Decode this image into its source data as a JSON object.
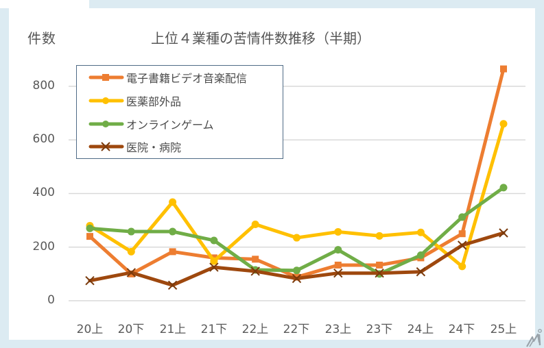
{
  "chart_data": {
    "type": "line",
    "title": "上位４業種の苦情件数推移（半期）",
    "ylabel": "件数",
    "xlabel": "",
    "categories": [
      "20上",
      "20下",
      "21上",
      "21下",
      "22上",
      "22下",
      "23上",
      "23下",
      "24上",
      "24下",
      "25上"
    ],
    "ylim": [
      0,
      800
    ],
    "yticks": [
      0,
      200,
      400,
      600,
      800
    ],
    "grid": true,
    "legend_position": "upper-left-inside",
    "series": [
      {
        "name": "電子書籍ビデオ音楽配信",
        "color": "#ed7d31",
        "marker": "square",
        "values": [
          240,
          100,
          183,
          160,
          155,
          88,
          133,
          133,
          160,
          250,
          865
        ]
      },
      {
        "name": "医薬部外品",
        "color": "#ffc000",
        "marker": "circle",
        "values": [
          280,
          183,
          368,
          148,
          285,
          235,
          257,
          242,
          255,
          128,
          660
        ]
      },
      {
        "name": "オンラインゲーム",
        "color": "#70ad47",
        "marker": "circle",
        "values": [
          270,
          258,
          258,
          225,
          115,
          113,
          190,
          100,
          170,
          312,
          422
        ]
      },
      {
        "name": "医院・病院",
        "color": "#9e480e",
        "marker": "x",
        "values": [
          75,
          105,
          58,
          125,
          110,
          83,
          103,
          103,
          108,
          207,
          253
        ]
      }
    ]
  },
  "header": {
    "unit_label": "件数",
    "title": "上位４業種の苦情件数推移（半期）"
  },
  "yaxis": {
    "ticks": [
      "800",
      "600",
      "400",
      "200",
      "0"
    ]
  },
  "xaxis": {
    "ticks": [
      "20上",
      "20下",
      "21上",
      "21下",
      "22上",
      "22下",
      "23上",
      "23下",
      "24上",
      "24下",
      "25上"
    ]
  },
  "legend": {
    "items": [
      {
        "label": "電子書籍ビデオ音楽配信",
        "color": "#ed7d31",
        "marker": "square"
      },
      {
        "label": "医薬部外品",
        "color": "#ffc000",
        "marker": "circle"
      },
      {
        "label": "オンラインゲーム",
        "color": "#70ad47",
        "marker": "circle"
      },
      {
        "label": "医院・病院",
        "color": "#9e480e",
        "marker": "x"
      }
    ]
  },
  "branding": {
    "logo_icon": "itmedia-logo-icon"
  },
  "colors": {
    "background": "#dcebf2",
    "panel": "#ffffff",
    "gridline": "#d9d9d9",
    "legend_border": "#4f6b86",
    "text": "#595959"
  }
}
